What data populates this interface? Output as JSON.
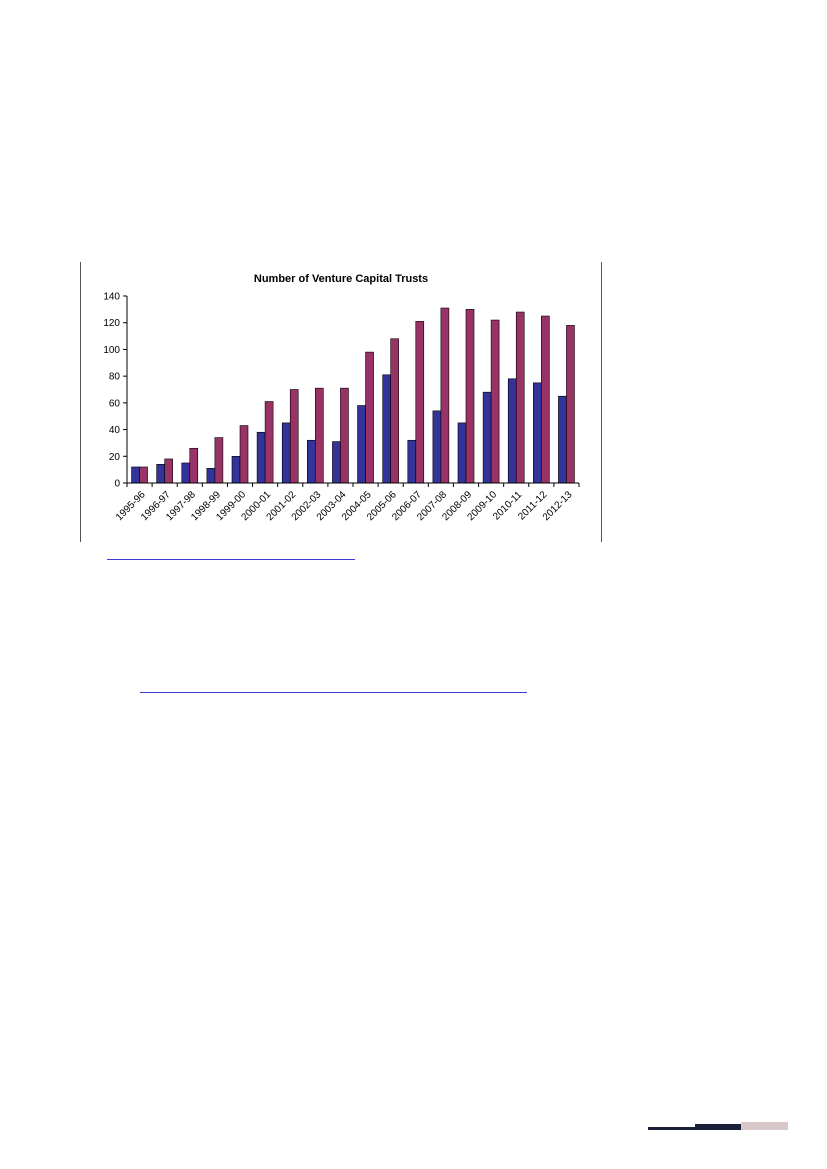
{
  "chart_data": {
    "type": "bar",
    "title": "Number of Venture Capital Trusts",
    "xlabel": "",
    "ylabel": "",
    "ylim": [
      0,
      140
    ],
    "yticks": [
      0,
      20,
      40,
      60,
      80,
      100,
      120,
      140
    ],
    "grid": false,
    "legend": "none",
    "categories": [
      "1995-96",
      "1996-97",
      "1997-98",
      "1998-99",
      "1999-00",
      "2000-01",
      "2001-02",
      "2002-03",
      "2003-04",
      "2004-05",
      "2005-06",
      "2006-07",
      "2007-08",
      "2008-09",
      "2009-10",
      "2010-11",
      "2011-12",
      "2012-13"
    ],
    "series": [
      {
        "color": "#33339a",
        "values": [
          12,
          14,
          15,
          11,
          20,
          38,
          45,
          32,
          31,
          58,
          81,
          32,
          54,
          45,
          68,
          78,
          75,
          65
        ]
      },
      {
        "color": "#993366",
        "values": [
          12,
          18,
          26,
          34,
          43,
          61,
          70,
          71,
          71,
          98,
          108,
          121,
          131,
          130,
          122,
          128,
          125,
          118
        ]
      }
    ]
  },
  "colors": {
    "frame": "#555555",
    "link": "#3a3ad8",
    "footer_dark": "#1c1f3a",
    "footer_light": "#d8c8c8"
  }
}
